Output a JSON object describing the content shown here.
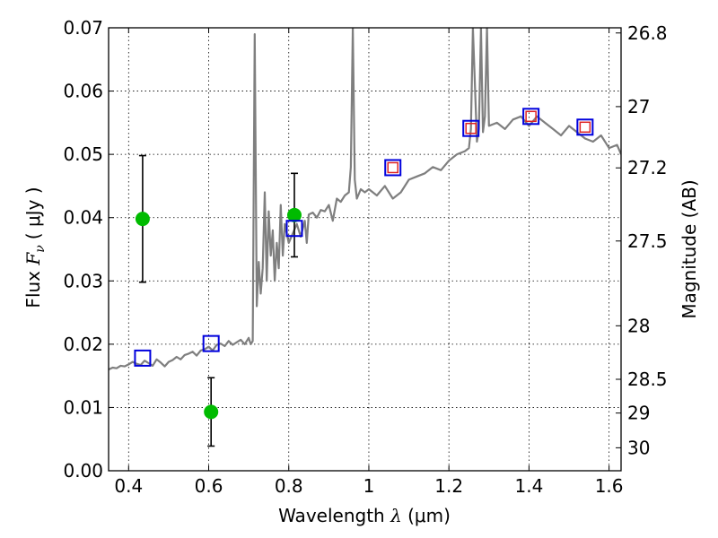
{
  "chart_data": {
    "type": "line",
    "title": "",
    "xlabel": "Wavelength  λ (μm)",
    "ylabel": "Flux  F_ν  ( μJy )",
    "ylabel_parts": {
      "prefix": "Flux ",
      "symbol": "F",
      "subscript": "ν",
      "unit": "( μJy )"
    },
    "xlabel_parts": {
      "prefix": "Wavelength  ",
      "symbol": "λ",
      "unit": " (μm)"
    },
    "y2label": "Magnitude (AB)",
    "xlim": [
      0.35,
      1.63
    ],
    "ylim": [
      0.0,
      0.07
    ],
    "grid": true,
    "x_ticks": [
      {
        "value": 0.4,
        "label": "0.4"
      },
      {
        "value": 0.6,
        "label": "0.6"
      },
      {
        "value": 0.8,
        "label": "0.8"
      },
      {
        "value": 1.0,
        "label": "1"
      },
      {
        "value": 1.2,
        "label": "1.2"
      },
      {
        "value": 1.4,
        "label": "1.4"
      },
      {
        "value": 1.6,
        "label": "1.6"
      }
    ],
    "y_ticks": [
      {
        "value": 0.0,
        "label": "0.00"
      },
      {
        "value": 0.01,
        "label": "0.01"
      },
      {
        "value": 0.02,
        "label": "0.02"
      },
      {
        "value": 0.03,
        "label": "0.03"
      },
      {
        "value": 0.04,
        "label": "0.04"
      },
      {
        "value": 0.05,
        "label": "0.05"
      },
      {
        "value": 0.06,
        "label": "0.06"
      },
      {
        "value": 0.07,
        "label": "0.07"
      }
    ],
    "y2_ticks": [
      {
        "mag": 26.8,
        "label": "26.8"
      },
      {
        "mag": 27.0,
        "label": "27"
      },
      {
        "mag": 27.2,
        "label": "27.2"
      },
      {
        "mag": 27.5,
        "label": "27.5"
      },
      {
        "mag": 28.0,
        "label": "28"
      },
      {
        "mag": 28.5,
        "label": "28.5"
      },
      {
        "mag": 29.0,
        "label": "29"
      },
      {
        "mag": 30.0,
        "label": "30"
      }
    ],
    "colors": {
      "spectrum": "#7f7f7f",
      "observed": "#00bb00",
      "model_box": "#0000dd",
      "model_inner": "#dd2222",
      "errorbar": "#000000"
    },
    "series": [
      {
        "name": "model spectrum",
        "kind": "line",
        "x": [
          0.35,
          0.36,
          0.37,
          0.38,
          0.39,
          0.4,
          0.41,
          0.42,
          0.43,
          0.44,
          0.45,
          0.46,
          0.47,
          0.48,
          0.49,
          0.5,
          0.51,
          0.52,
          0.53,
          0.54,
          0.55,
          0.56,
          0.57,
          0.58,
          0.59,
          0.6,
          0.61,
          0.62,
          0.63,
          0.64,
          0.65,
          0.66,
          0.67,
          0.68,
          0.69,
          0.7,
          0.705,
          0.71,
          0.715,
          0.72,
          0.725,
          0.73,
          0.735,
          0.74,
          0.745,
          0.75,
          0.755,
          0.76,
          0.765,
          0.77,
          0.775,
          0.78,
          0.785,
          0.79,
          0.8,
          0.81,
          0.82,
          0.83,
          0.84,
          0.845,
          0.85,
          0.86,
          0.87,
          0.88,
          0.89,
          0.9,
          0.91,
          0.92,
          0.93,
          0.94,
          0.95,
          0.955,
          0.96,
          0.965,
          0.97,
          0.98,
          0.99,
          1.0,
          1.02,
          1.04,
          1.06,
          1.08,
          1.1,
          1.12,
          1.14,
          1.16,
          1.18,
          1.2,
          1.22,
          1.24,
          1.25,
          1.255,
          1.26,
          1.27,
          1.275,
          1.28,
          1.285,
          1.29,
          1.295,
          1.3,
          1.32,
          1.34,
          1.36,
          1.38,
          1.4,
          1.42,
          1.44,
          1.46,
          1.48,
          1.5,
          1.52,
          1.54,
          1.56,
          1.58,
          1.6,
          1.62,
          1.63
        ],
        "y": [
          0.016,
          0.0163,
          0.0162,
          0.0166,
          0.0165,
          0.0168,
          0.0172,
          0.0169,
          0.0167,
          0.0174,
          0.017,
          0.0166,
          0.0176,
          0.0171,
          0.0165,
          0.0172,
          0.0175,
          0.018,
          0.0176,
          0.0183,
          0.0185,
          0.0188,
          0.0182,
          0.019,
          0.0192,
          0.0196,
          0.019,
          0.0199,
          0.0201,
          0.0197,
          0.0205,
          0.0199,
          0.0203,
          0.0207,
          0.02,
          0.021,
          0.02,
          0.0205,
          0.069,
          0.026,
          0.033,
          0.028,
          0.032,
          0.044,
          0.03,
          0.041,
          0.034,
          0.038,
          0.03,
          0.036,
          0.032,
          0.042,
          0.034,
          0.039,
          0.036,
          0.0375,
          0.039,
          0.037,
          0.0395,
          0.036,
          0.0405,
          0.0408,
          0.04,
          0.0412,
          0.041,
          0.042,
          0.0395,
          0.043,
          0.0425,
          0.0435,
          0.044,
          0.048,
          0.07,
          0.046,
          0.043,
          0.0445,
          0.044,
          0.0445,
          0.0435,
          0.045,
          0.043,
          0.044,
          0.046,
          0.0465,
          0.047,
          0.048,
          0.0475,
          0.049,
          0.05,
          0.0505,
          0.051,
          0.054,
          0.07,
          0.052,
          0.054,
          0.07,
          0.0535,
          0.056,
          0.07,
          0.0545,
          0.055,
          0.054,
          0.0555,
          0.056,
          0.0545,
          0.056,
          0.055,
          0.054,
          0.053,
          0.0545,
          0.0535,
          0.0525,
          0.052,
          0.053,
          0.051,
          0.0515,
          0.05
        ]
      },
      {
        "name": "observed photometry",
        "kind": "points_with_error",
        "x": [
          0.435,
          0.606,
          0.814
        ],
        "y": [
          0.0398,
          0.0093,
          0.0404
        ],
        "yerr": [
          0.01,
          0.0054,
          0.0066
        ]
      },
      {
        "name": "model photometry (blue squares)",
        "kind": "open_squares",
        "x": [
          0.435,
          0.606,
          0.814,
          1.06,
          1.255,
          1.405,
          1.54
        ],
        "y": [
          0.0178,
          0.0201,
          0.0383,
          0.0479,
          0.0541,
          0.056,
          0.0543
        ]
      },
      {
        "name": "model photometry (red squares)",
        "kind": "open_squares_small",
        "x": [
          1.06,
          1.255,
          1.405,
          1.54
        ],
        "y": [
          0.0479,
          0.0541,
          0.056,
          0.0543
        ]
      }
    ]
  }
}
